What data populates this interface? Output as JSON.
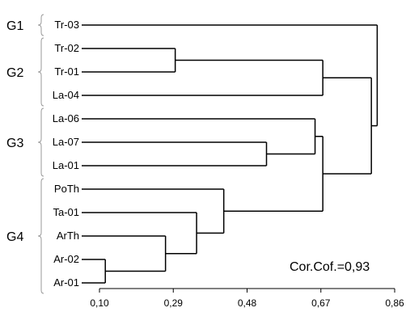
{
  "chart_data": {
    "type": "dendrogram",
    "leaves": [
      "Tr-03",
      "Tr-02",
      "Tr-01",
      "La-04",
      "La-06",
      "La-07",
      "La-01",
      "PoTh",
      "Ta-01",
      "ArTh",
      "Ar-02",
      "Ar-01"
    ],
    "groups": [
      {
        "label": "G1",
        "leaf_start": 0,
        "leaf_end": 0
      },
      {
        "label": "G2",
        "leaf_start": 1,
        "leaf_end": 3
      },
      {
        "label": "G3",
        "leaf_start": 4,
        "leaf_end": 6
      },
      {
        "label": "G4",
        "leaf_start": 7,
        "leaf_end": 11
      }
    ],
    "merges": [
      {
        "id": "m1",
        "children": [
          "Ar-02",
          "Ar-01"
        ],
        "height": 0.115
      },
      {
        "id": "m2",
        "children": [
          "ArTh",
          "m1"
        ],
        "height": 0.27
      },
      {
        "id": "m3",
        "children": [
          "Tr-02",
          "Tr-01"
        ],
        "height": 0.295
      },
      {
        "id": "m4",
        "children": [
          "Ta-01",
          "m2"
        ],
        "height": 0.35
      },
      {
        "id": "m5",
        "children": [
          "PoTh",
          "m4"
        ],
        "height": 0.42
      },
      {
        "id": "m6",
        "children": [
          "La-07",
          "La-01"
        ],
        "height": 0.53
      },
      {
        "id": "m7",
        "children": [
          "La-06",
          "m6"
        ],
        "height": 0.655
      },
      {
        "id": "m8",
        "children": [
          "m3",
          "La-04"
        ],
        "height": 0.675
      },
      {
        "id": "m9",
        "children": [
          "m7",
          "m5"
        ],
        "height": 0.675
      },
      {
        "id": "m10",
        "children": [
          "m8",
          "m9"
        ],
        "height": 0.8
      },
      {
        "id": "m11",
        "children": [
          "Tr-03",
          "m10"
        ],
        "height": 0.815
      }
    ],
    "xaxis": {
      "range": [
        0.1,
        0.86
      ],
      "ticks": [
        0.1,
        0.29,
        0.48,
        0.67,
        0.86
      ],
      "tick_labels": [
        "0,10",
        "0,29",
        "0,48",
        "0,67",
        "0,86"
      ]
    },
    "annotation": "Cor.Cof.=0,93"
  }
}
